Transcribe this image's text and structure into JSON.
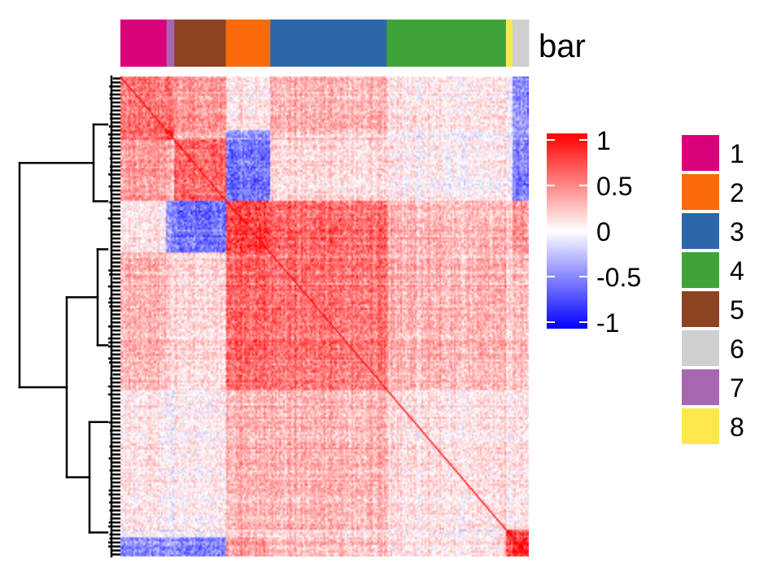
{
  "chart_data": {
    "type": "heatmap",
    "title": "",
    "description_kind": "correlation heatmap with row dendrogram and column annotation bar",
    "annotation_bar": {
      "label": "bar",
      "blocks": [
        {
          "group": "1",
          "fraction": 0.113
        },
        {
          "group": "7",
          "fraction": 0.019
        },
        {
          "group": "5",
          "fraction": 0.126
        },
        {
          "group": "2",
          "fraction": 0.109
        },
        {
          "group": "3",
          "fraction": 0.285
        },
        {
          "group": "4",
          "fraction": 0.292
        },
        {
          "group": "8",
          "fraction": 0.016
        },
        {
          "group": "6",
          "fraction": 0.04
        }
      ]
    },
    "color_scale": {
      "min": -1,
      "max": 1,
      "stops": [
        {
          "value": -1,
          "color": "#0000ff"
        },
        {
          "value": 0,
          "color": "#ffffff"
        },
        {
          "value": 1,
          "color": "#ff0000"
        }
      ],
      "ticks": [
        "1",
        "0.5",
        "0",
        "-0.5",
        "-1"
      ]
    },
    "legend": {
      "items": [
        {
          "label": "1",
          "color": "#d9027b"
        },
        {
          "label": "2",
          "color": "#fb6a09"
        },
        {
          "label": "3",
          "color": "#2c67aa"
        },
        {
          "label": "4",
          "color": "#40a33a"
        },
        {
          "label": "5",
          "color": "#8d4221"
        },
        {
          "label": "6",
          "color": "#cfcfcf"
        },
        {
          "label": "7",
          "color": "#a667b0"
        },
        {
          "label": "8",
          "color": "#fde74c"
        }
      ]
    },
    "row_order_groups": [
      "1",
      "7",
      "5",
      "2",
      "3",
      "4",
      "8",
      "6"
    ],
    "block_correlation_matrix": [
      [
        0.55,
        0.6,
        0.4,
        0.1,
        0.3,
        0.1,
        0.0,
        -0.45
      ],
      [
        0.6,
        0.85,
        0.3,
        -0.4,
        0.2,
        0.0,
        -0.05,
        -0.4
      ],
      [
        0.4,
        0.3,
        0.6,
        -0.55,
        0.15,
        0.05,
        0.0,
        -0.5
      ],
      [
        0.1,
        -0.4,
        -0.55,
        0.75,
        0.6,
        0.3,
        0.2,
        0.4
      ],
      [
        0.3,
        0.2,
        0.15,
        0.6,
        0.55,
        0.3,
        0.15,
        0.25
      ],
      [
        0.1,
        0.0,
        0.05,
        0.3,
        0.3,
        0.12,
        0.05,
        0.1
      ],
      [
        0.0,
        -0.05,
        0.0,
        0.2,
        0.15,
        0.05,
        0.9,
        0.7
      ],
      [
        -0.45,
        -0.4,
        -0.5,
        0.4,
        0.25,
        0.1,
        0.7,
        0.8
      ]
    ],
    "diagonal_value": 1,
    "grid": false,
    "legend_placement": "right"
  }
}
